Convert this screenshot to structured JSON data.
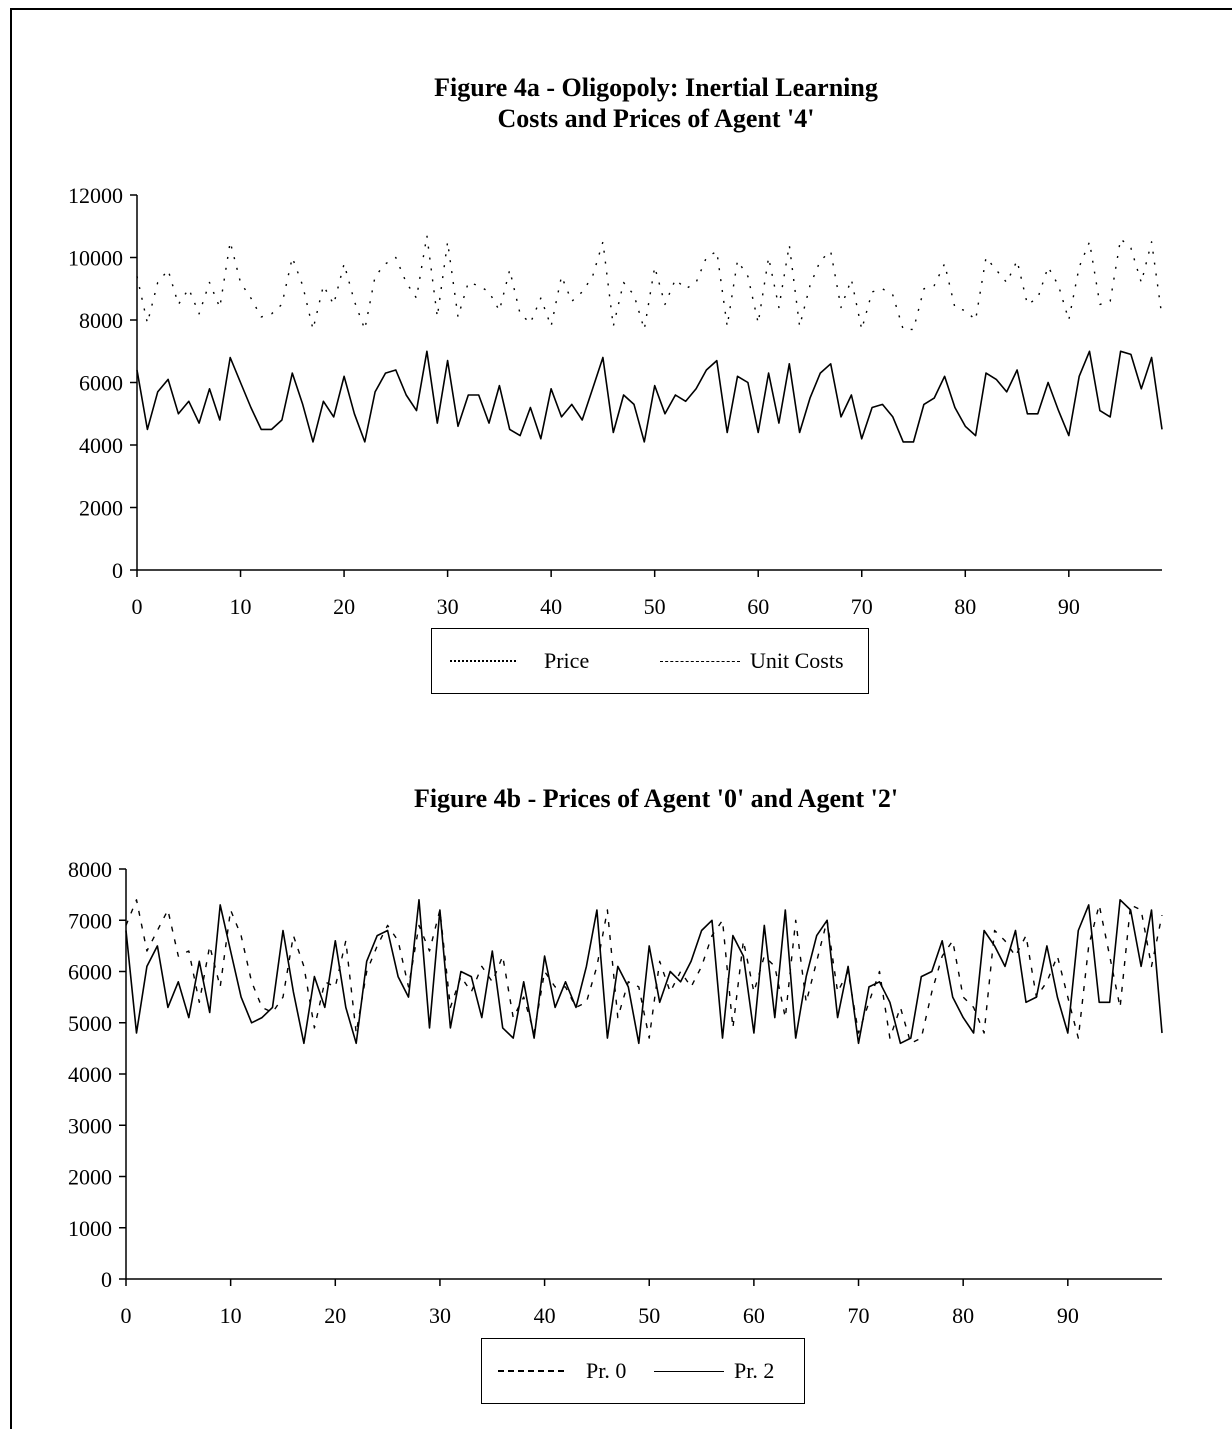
{
  "figure_4a": {
    "title_line1": "Figure 4a - Oligopoly: Inertial Learning",
    "title_line2": "Costs and Prices of Agent '4'",
    "legend": [
      "Price",
      "Unit Costs"
    ]
  },
  "figure_4b": {
    "title": "Figure 4b - Prices of Agent '0' and Agent '2'",
    "legend": [
      "Pr. 0",
      "Pr. 2"
    ]
  },
  "chart_data": [
    {
      "type": "line",
      "title": "Figure 4a - Oligopoly: Inertial Learning / Costs and Prices of Agent '4'",
      "xlabel": "",
      "ylabel": "",
      "xlim": [
        0,
        99
      ],
      "ylim": [
        0,
        12000
      ],
      "yticks": [
        0,
        2000,
        4000,
        6000,
        8000,
        10000,
        12000
      ],
      "xticks": [
        0,
        10,
        20,
        30,
        40,
        50,
        60,
        70,
        80,
        90
      ],
      "grid": false,
      "legend_placement": "bottom",
      "x": [
        0,
        1,
        2,
        3,
        4,
        5,
        6,
        7,
        8,
        9,
        10,
        11,
        12,
        13,
        14,
        15,
        16,
        17,
        18,
        19,
        20,
        21,
        22,
        23,
        24,
        25,
        26,
        27,
        28,
        29,
        30,
        31,
        32,
        33,
        34,
        35,
        36,
        37,
        38,
        39,
        40,
        41,
        42,
        43,
        44,
        45,
        46,
        47,
        48,
        49,
        50,
        51,
        52,
        53,
        54,
        55,
        56,
        57,
        58,
        59,
        60,
        61,
        62,
        63,
        64,
        65,
        66,
        67,
        68,
        69,
        70,
        71,
        72,
        73,
        74,
        75,
        76,
        77,
        78,
        79,
        80,
        81,
        82,
        83,
        84,
        85,
        86,
        87,
        88,
        89,
        90,
        91,
        92,
        93,
        94,
        95,
        96,
        97,
        98,
        99
      ],
      "series": [
        {
          "name": "Price",
          "style": "dotted",
          "values": [
            9400,
            7900,
            9200,
            9600,
            8500,
            9000,
            8200,
            9200,
            8400,
            10500,
            9200,
            8700,
            8100,
            8200,
            8500,
            10000,
            9100,
            7700,
            9100,
            8500,
            9800,
            8600,
            7700,
            9400,
            9800,
            10000,
            9200,
            8700,
            10700,
            8100,
            10500,
            8100,
            9200,
            9100,
            8900,
            8300,
            9600,
            8200,
            7900,
            8700,
            7800,
            9400,
            8600,
            8900,
            9400,
            10500,
            7800,
            9200,
            8800,
            7700,
            9700,
            8500,
            9300,
            9000,
            9200,
            10000,
            10200,
            7800,
            9900,
            9400,
            7900,
            10000,
            8400,
            10400,
            7800,
            9100,
            9900,
            10200,
            8400,
            9300,
            7700,
            8900,
            9000,
            8800,
            7700,
            7700,
            9000,
            9100,
            9800,
            8400,
            8300,
            8000,
            10000,
            9600,
            9200,
            9900,
            8500,
            8700,
            9700,
            9100,
            8000,
            9700,
            10500,
            8500,
            8600,
            10600,
            10300,
            9200,
            10500,
            8100
          ]
        },
        {
          "name": "Unit Costs",
          "style": "solid",
          "values": [
            6400,
            4500,
            5700,
            6100,
            5000,
            5400,
            4700,
            5800,
            4800,
            6800,
            6000,
            5200,
            4500,
            4500,
            4800,
            6300,
            5300,
            4100,
            5400,
            4900,
            6200,
            5000,
            4100,
            5700,
            6300,
            6400,
            5600,
            5100,
            7000,
            4700,
            6700,
            4600,
            5600,
            5600,
            4700,
            5900,
            4500,
            4300,
            5200,
            4200,
            5800,
            4900,
            5300,
            4800,
            5800,
            6800,
            4400,
            5600,
            5300,
            4100,
            5900,
            5000,
            5600,
            5400,
            5800,
            6400,
            6700,
            4400,
            6200,
            6000,
            4400,
            6300,
            4700,
            6600,
            4400,
            5500,
            6300,
            6600,
            4900,
            5600,
            4200,
            5200,
            5300,
            4900,
            4100,
            4100,
            5300,
            5500,
            6200,
            5200,
            4600,
            4300,
            6300,
            6100,
            5700,
            6400,
            5000,
            5000,
            6000,
            5100,
            4300,
            6200,
            7000,
            5100,
            4900,
            7000,
            6900,
            5800,
            6800,
            4500
          ]
        }
      ]
    },
    {
      "type": "line",
      "title": "Figure 4b - Prices of Agent '0' and Agent '2'",
      "xlabel": "",
      "ylabel": "",
      "xlim": [
        0,
        99
      ],
      "ylim": [
        0,
        8000
      ],
      "yticks": [
        0,
        1000,
        2000,
        3000,
        4000,
        5000,
        6000,
        7000,
        8000
      ],
      "xticks": [
        0,
        10,
        20,
        30,
        40,
        50,
        60,
        70,
        80,
        90
      ],
      "grid": false,
      "legend_placement": "bottom",
      "x": [
        0,
        1,
        2,
        3,
        4,
        5,
        6,
        7,
        8,
        9,
        10,
        11,
        12,
        13,
        14,
        15,
        16,
        17,
        18,
        19,
        20,
        21,
        22,
        23,
        24,
        25,
        26,
        27,
        28,
        29,
        30,
        31,
        32,
        33,
        34,
        35,
        36,
        37,
        38,
        39,
        40,
        41,
        42,
        43,
        44,
        45,
        46,
        47,
        48,
        49,
        50,
        51,
        52,
        53,
        54,
        55,
        56,
        57,
        58,
        59,
        60,
        61,
        62,
        63,
        64,
        65,
        66,
        67,
        68,
        69,
        70,
        71,
        72,
        73,
        74,
        75,
        76,
        77,
        78,
        79,
        80,
        81,
        82,
        83,
        84,
        85,
        86,
        87,
        88,
        89,
        90,
        91,
        92,
        93,
        94,
        95,
        96,
        97,
        98,
        99
      ],
      "series": [
        {
          "name": "Pr. 0",
          "style": "dashed",
          "values": [
            6900,
            7400,
            6400,
            6800,
            7200,
            6300,
            6400,
            5400,
            6500,
            5700,
            7200,
            6700,
            5800,
            5300,
            5200,
            5500,
            6700,
            6100,
            4900,
            5800,
            5700,
            6600,
            4800,
            6000,
            6500,
            6900,
            6600,
            5700,
            6900,
            6400,
            7200,
            5300,
            5900,
            5600,
            6100,
            5800,
            6300,
            5100,
            5500,
            4800,
            6000,
            5700,
            5700,
            5300,
            5400,
            6100,
            7200,
            5100,
            5800,
            5700,
            4700,
            6200,
            5600,
            6000,
            5700,
            6100,
            6700,
            7000,
            4900,
            6600,
            5600,
            6300,
            6100,
            5100,
            7000,
            5400,
            6200,
            7000,
            5600,
            6000,
            4800,
            5400,
            6000,
            4700,
            5300,
            4600,
            4700,
            5600,
            6300,
            6600,
            5500,
            5300,
            4800,
            6800,
            6600,
            6300,
            6700,
            5500,
            5800,
            6300,
            5500,
            4700,
            6500,
            7300,
            6300,
            5300,
            7300,
            7200,
            6100,
            7100
          ]
        },
        {
          "name": "Pr. 2",
          "style": "solid",
          "values": [
            6800,
            4800,
            6100,
            6500,
            5300,
            5800,
            5100,
            6200,
            5200,
            7300,
            6400,
            5500,
            5000,
            5100,
            5300,
            6800,
            5600,
            4600,
            5900,
            5300,
            6600,
            5300,
            4600,
            6200,
            6700,
            6800,
            5900,
            5500,
            7400,
            4900,
            7200,
            4900,
            6000,
            5900,
            5100,
            6400,
            4900,
            4700,
            5800,
            4700,
            6300,
            5300,
            5800,
            5300,
            6100,
            7200,
            4700,
            6100,
            5700,
            4600,
            6500,
            5400,
            6000,
            5800,
            6200,
            6800,
            7000,
            4700,
            6700,
            6300,
            4800,
            6900,
            5100,
            7200,
            4700,
            5900,
            6700,
            7000,
            5100,
            6100,
            4600,
            5700,
            5800,
            5400,
            4600,
            4700,
            5900,
            6000,
            6600,
            5500,
            5100,
            4800,
            6800,
            6500,
            6100,
            6800,
            5400,
            5500,
            6500,
            5500,
            4800,
            6800,
            7300,
            5400,
            5400,
            7400,
            7200,
            6100,
            7200,
            4800
          ]
        }
      ]
    }
  ]
}
